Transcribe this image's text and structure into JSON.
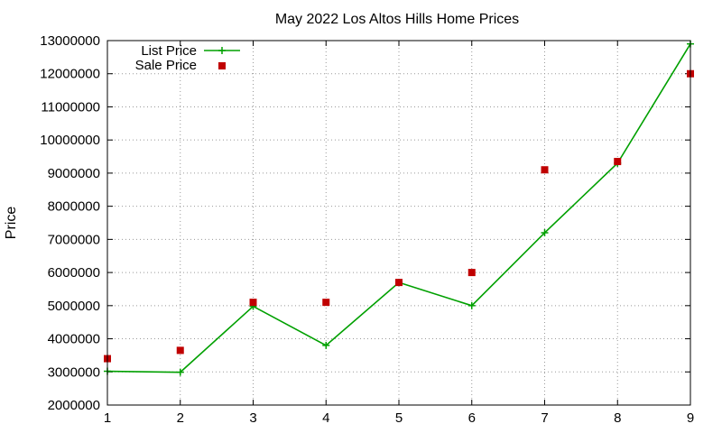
{
  "chart_data": {
    "type": "line",
    "title": "May 2022 Los Altos Hills Home Prices",
    "xlabel": "",
    "ylabel": "Price",
    "x": [
      1,
      2,
      3,
      4,
      5,
      6,
      7,
      8,
      9
    ],
    "xlim": [
      1,
      9
    ],
    "ylim": [
      2000000,
      13000000
    ],
    "x_ticks": [
      "1",
      "2",
      "3",
      "4",
      "5",
      "6",
      "7",
      "8",
      "9"
    ],
    "y_ticks": [
      "2000000",
      "3000000",
      "4000000",
      "5000000",
      "6000000",
      "7000000",
      "8000000",
      "9000000",
      "10000000",
      "11000000",
      "12000000",
      "13000000"
    ],
    "grid": true,
    "legend_position": "top-left",
    "series": [
      {
        "name": "List Price",
        "style": "line-with-plus",
        "color": "#00a000",
        "values": [
          3020000,
          2990000,
          4980000,
          3800000,
          5700000,
          5000000,
          7200000,
          9300000,
          12900000
        ]
      },
      {
        "name": "Sale Price",
        "style": "square-points",
        "color": "#c00000",
        "values": [
          3400000,
          3650000,
          5100000,
          5100000,
          5700000,
          6000000,
          9100000,
          9350000,
          12000000
        ]
      }
    ]
  }
}
